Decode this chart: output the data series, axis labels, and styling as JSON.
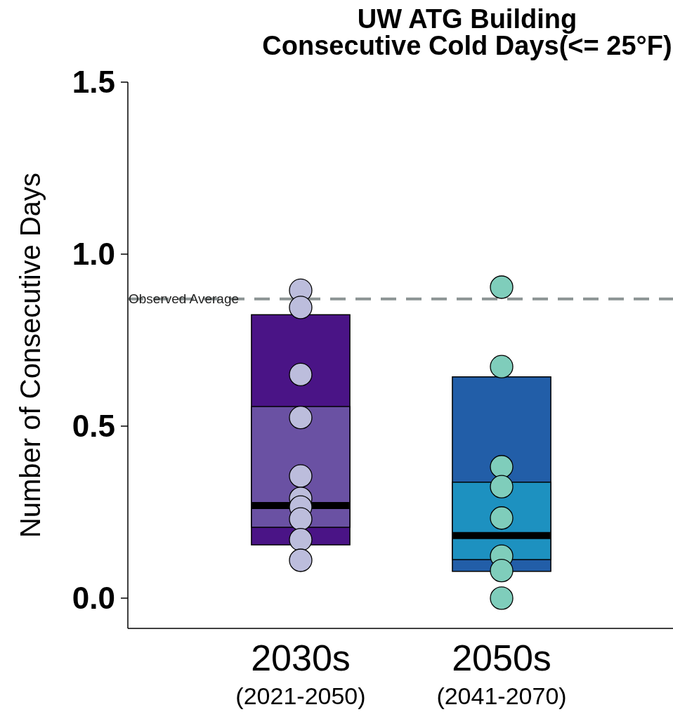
{
  "chart_data": {
    "type": "box",
    "title": "UW ATG Building\nConsecutive Cold Days(<= 25°F)",
    "ylabel": "Number of Consecutive Days",
    "categories": [
      "2030s\n(2021-2050)",
      "2050s\n(2041-2070)"
    ],
    "ylim": [
      -0.088,
      1.5
    ],
    "yticks": [
      {
        "value": 0,
        "label": "0.0"
      },
      0.5,
      {
        "value": 1,
        "label": "1.0"
      },
      1.5
    ],
    "grid": false,
    "legend": false,
    "ref_lines": [
      {
        "axis": "y",
        "value": 0.87,
        "label": "Observed Average",
        "color": "#8c9494",
        "line_style": "dashed"
      }
    ],
    "series": [
      {
        "colors": [
          "#4a1486",
          "#225ea8"
        ],
        "boxes": [
          {
            "low": 0.155,
            "q1": 0.155,
            "median": 0.269,
            "q3": 0.824,
            "high": 0.824
          },
          {
            "low": 0.078,
            "q1": 0.078,
            "median": 0.182,
            "q3": 0.643,
            "high": 0.643
          }
        ]
      },
      {
        "type": "bar",
        "colors": [
          "#6a51a3",
          "#1d91c0"
        ],
        "base": [
          0.206,
          0.112
        ],
        "values": [
          0.351,
          0.225
        ]
      },
      {
        "type": "scatter",
        "color": "#bcbddc",
        "x": [
          "2030s\n(2021-2050)",
          "2030s\n(2021-2050)",
          "2030s\n(2021-2050)",
          "2030s\n(2021-2050)",
          "2030s\n(2021-2050)",
          "2030s\n(2021-2050)",
          "2030s\n(2021-2050)",
          "2030s\n(2021-2050)",
          "2030s\n(2021-2050)",
          "2030s\n(2021-2050)"
        ],
        "values": [
          0.895,
          0.845,
          0.65,
          0.525,
          0.355,
          0.29,
          0.265,
          0.23,
          0.17,
          0.11
        ]
      },
      {
        "type": "scatter",
        "color": "#7fcdbb",
        "x": [
          "2050s\n(2041-2070)",
          "2050s\n(2041-2070)",
          "2050s\n(2041-2070)",
          "2050s\n(2041-2070)",
          "2050s\n(2041-2070)",
          "2050s\n(2041-2070)",
          "2050s\n(2041-2070)",
          "2050s\n(2041-2070)"
        ],
        "values": [
          0.904,
          0.673,
          0.382,
          0.324,
          0.233,
          0.122,
          0.08,
          0.0
        ]
      }
    ]
  }
}
